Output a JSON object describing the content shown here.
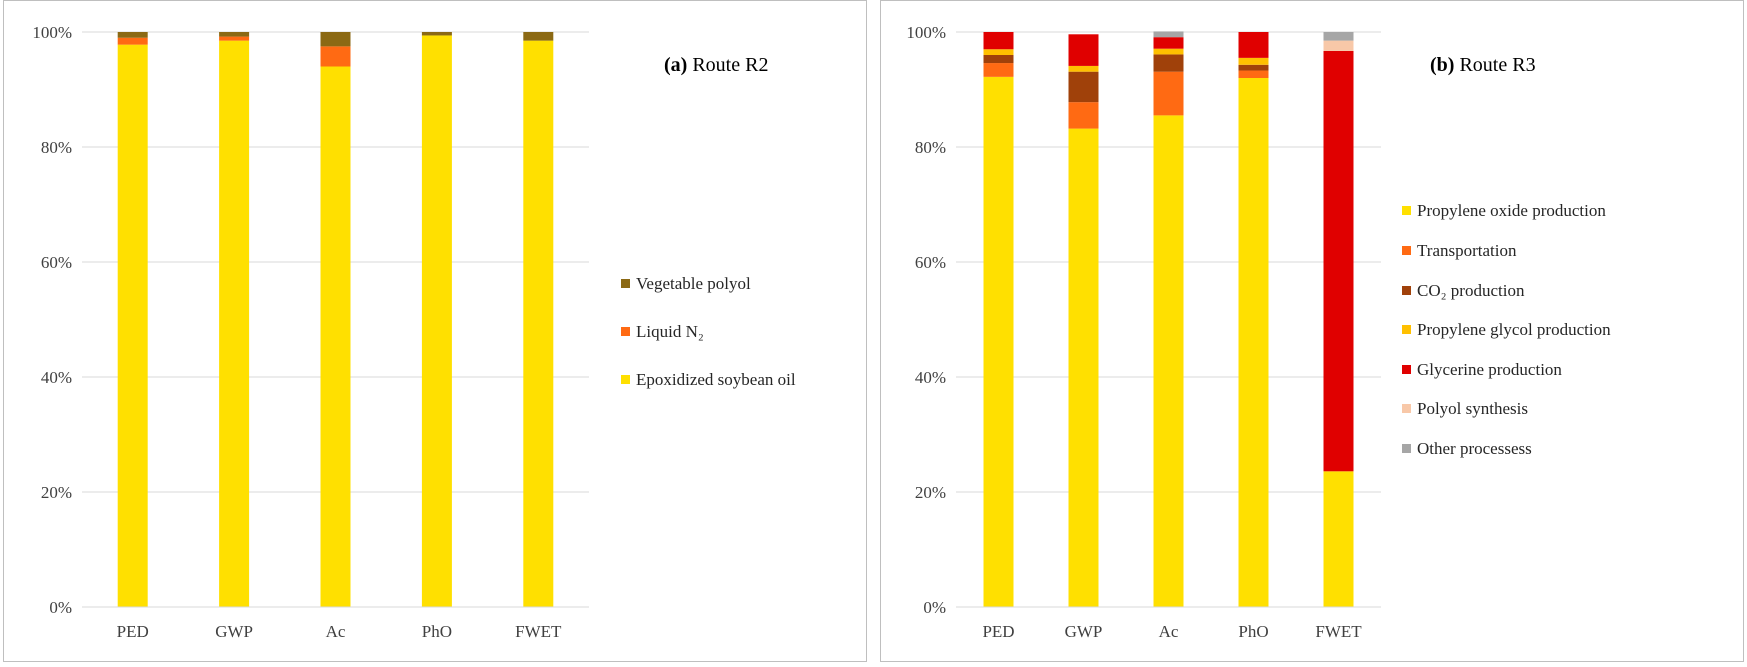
{
  "chart_data": [
    {
      "type": "bar",
      "stacked": true,
      "title_prefix": "(a)",
      "title": "Route R2",
      "categories": [
        "PED",
        "GWP",
        "Ac",
        "PhO",
        "FWET"
      ],
      "yticks": [
        "0%",
        "20%",
        "40%",
        "60%",
        "80%",
        "100%"
      ],
      "ylim": [
        0,
        100
      ],
      "legend_position": "right",
      "series": [
        {
          "name": "Epoxidized soybean oil",
          "color": "#FFE000",
          "values": [
            97.8,
            98.5,
            94.0,
            99.4,
            98.5
          ]
        },
        {
          "name": "Liquid N₂",
          "color": "#FF6A13",
          "values": [
            1.2,
            0.7,
            3.5,
            0.0,
            0.0
          ]
        },
        {
          "name": "Vegetable polyol",
          "color": "#8B6914",
          "values": [
            1.0,
            0.8,
            2.5,
            0.6,
            1.5
          ]
        }
      ]
    },
    {
      "type": "bar",
      "stacked": true,
      "title_prefix": "(b)",
      "title": "Route R3",
      "categories": [
        "PED",
        "GWP",
        "Ac",
        "PhO",
        "FWET"
      ],
      "yticks": [
        "0%",
        "20%",
        "40%",
        "60%",
        "80%",
        "100%"
      ],
      "ylim": [
        0,
        100
      ],
      "legend_position": "right",
      "series": [
        {
          "name": "Propylene oxide production",
          "color": "#FFE000",
          "values": [
            92.2,
            83.2,
            85.5,
            92.0,
            23.6
          ]
        },
        {
          "name": "Transportation",
          "color": "#FF6A13",
          "values": [
            2.4,
            4.6,
            7.6,
            1.3,
            0.0
          ]
        },
        {
          "name": "CO₂ production",
          "color": "#A0410A",
          "values": [
            1.4,
            5.3,
            3.0,
            1.0,
            0.0
          ]
        },
        {
          "name": "Propylene glycol production",
          "color": "#FFC000",
          "values": [
            1.0,
            1.0,
            1.0,
            1.2,
            0.0
          ]
        },
        {
          "name": "Glycerine production",
          "color": "#E00000",
          "values": [
            3.0,
            5.5,
            2.0,
            4.5,
            73.1
          ]
        },
        {
          "name": "Polyol synthesis",
          "color": "#F8C8A8",
          "values": [
            0.0,
            0.0,
            0.0,
            0.0,
            1.8
          ]
        },
        {
          "name": "Other processess",
          "color": "#A6A6A6",
          "values": [
            0.0,
            0.0,
            1.0,
            0.0,
            1.5
          ]
        }
      ]
    }
  ]
}
